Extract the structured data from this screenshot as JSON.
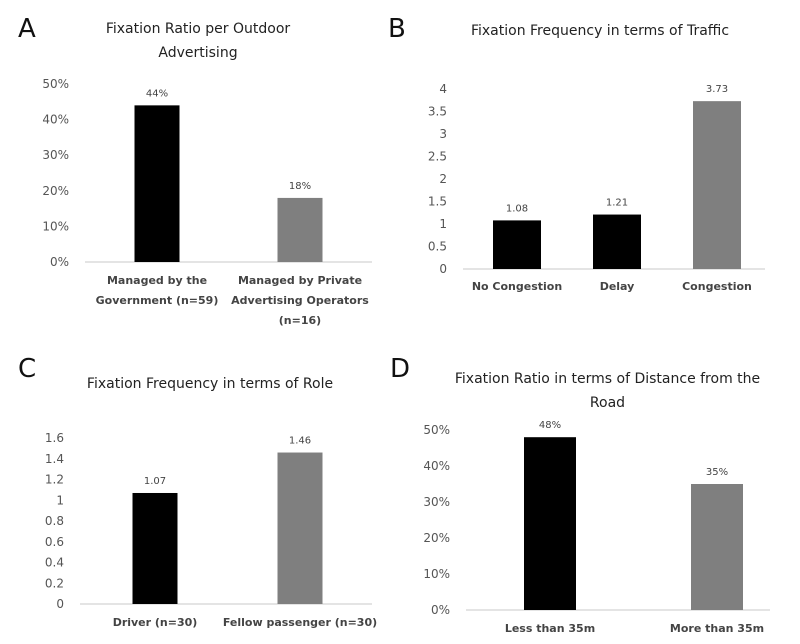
{
  "chart_data": [
    {
      "panel": "A",
      "type": "bar",
      "title": "Fixation Ratio per Outdoor Advertising",
      "categories": [
        "Managed by the Government (n=59)",
        "Managed by Private Advertising Operators (n=16)"
      ],
      "category_lines": [
        [
          "Managed by the",
          "Government (n=59)"
        ],
        [
          "Managed by Private",
          "Advertising Operators",
          "(n=16)"
        ]
      ],
      "values": [
        44,
        18
      ],
      "data_labels": [
        "44%",
        "18%"
      ],
      "bar_colors": [
        "#000000",
        "#7f7f7f"
      ],
      "ylim": [
        0,
        50
      ],
      "yticks": [
        0,
        10,
        20,
        30,
        40,
        50
      ],
      "ytick_labels": [
        "0%",
        "10%",
        "20%",
        "30%",
        "40%",
        "50%"
      ],
      "xlabel": "",
      "ylabel": "",
      "grid": false
    },
    {
      "panel": "B",
      "type": "bar",
      "title": "Fixation Frequency in terms of Traffic",
      "categories": [
        "No Congestion",
        "Delay",
        "Congestion"
      ],
      "category_lines": [
        [
          "No Congestion"
        ],
        [
          "Delay"
        ],
        [
          "Congestion"
        ]
      ],
      "values": [
        1.08,
        1.21,
        3.73
      ],
      "data_labels": [
        "1.08",
        "1.21",
        "3.73"
      ],
      "bar_colors": [
        "#000000",
        "#000000",
        "#7f7f7f"
      ],
      "ylim": [
        0,
        4
      ],
      "yticks": [
        0,
        0.5,
        1,
        1.5,
        2,
        2.5,
        3,
        3.5,
        4
      ],
      "ytick_labels": [
        "0",
        "0.5",
        "1",
        "1.5",
        "2",
        "2.5",
        "3",
        "3.5",
        "4"
      ],
      "xlabel": "",
      "ylabel": "",
      "grid": false
    },
    {
      "panel": "C",
      "type": "bar",
      "title": "Fixation Frequency in terms of Role",
      "categories": [
        "Driver (n=30)",
        "Fellow passenger (n=30)"
      ],
      "category_lines": [
        [
          "Driver (n=30)"
        ],
        [
          "Fellow passenger (n=30)"
        ]
      ],
      "values": [
        1.07,
        1.46
      ],
      "data_labels": [
        "1.07",
        "1.46"
      ],
      "bar_colors": [
        "#000000",
        "#7f7f7f"
      ],
      "ylim": [
        0,
        1.6
      ],
      "yticks": [
        0,
        0.2,
        0.4,
        0.6,
        0.8,
        1,
        1.2,
        1.4,
        1.6
      ],
      "ytick_labels": [
        "0",
        "0.2",
        "0.4",
        "0.6",
        "0.8",
        "1",
        "1.2",
        "1.4",
        "1.6"
      ],
      "xlabel": "",
      "ylabel": "",
      "grid": false
    },
    {
      "panel": "D",
      "type": "bar",
      "title": "Fixation Ratio in terms of Distance from the Road",
      "categories": [
        "Less than 35m",
        "More than 35m"
      ],
      "category_lines": [
        [
          "Less than 35m"
        ],
        [
          "More than 35m"
        ]
      ],
      "values": [
        48,
        35
      ],
      "data_labels": [
        "48%",
        "35%"
      ],
      "bar_colors": [
        "#000000",
        "#7f7f7f"
      ],
      "ylim": [
        0,
        50
      ],
      "yticks": [
        0,
        10,
        20,
        30,
        40,
        50
      ],
      "ytick_labels": [
        "0%",
        "10%",
        "20%",
        "30%",
        "40%",
        "50%"
      ],
      "xlabel": "",
      "ylabel": "",
      "grid": false
    }
  ]
}
